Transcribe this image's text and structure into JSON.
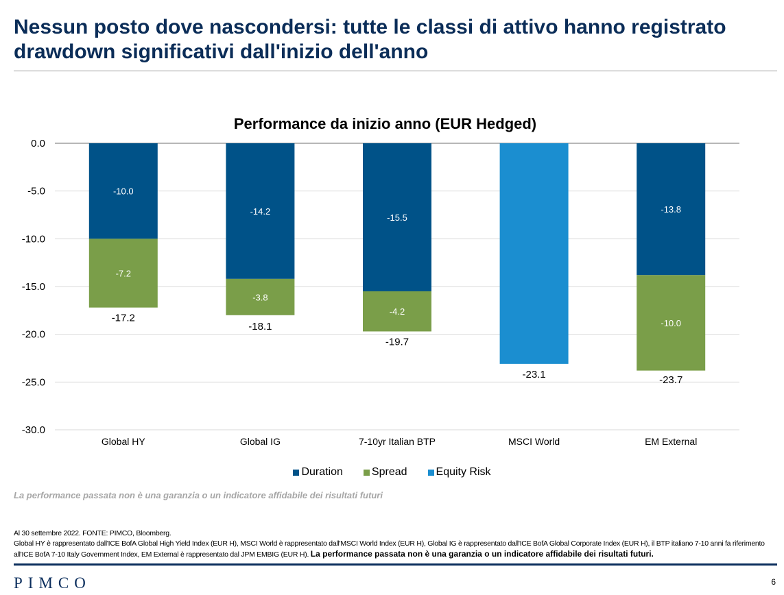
{
  "slide": {
    "title": "Nessun posto dove nascondersi: tutte le classi di attivo hanno registrato drawdown significativi dall'inizio dell'anno",
    "disclaimer": "La performance passata non è una garanzia o un indicatore affidabile dei risultati futuri",
    "notes_line1": "Al 30 settembre 2022. FONTE: PIMCO, Bloomberg.",
    "notes_line2": "Global HY è rappresentato dall'ICE BofA Global High Yield Index (EUR H), MSCI World è rappresentato dall'MSCI World Index (EUR H), Global IG è rappresentato dall'ICE BofA Global Corporate Index (EUR H), il BTP italiano 7-10 anni fa riferimento all'ICE BofA 7-10 Italy Government Index, EM External è rappresentato dal JPM EMBIG (EUR H).",
    "notes_bold": "La performance passata non è una garanzia o un indicatore affidabile dei risultati futuri.",
    "logo": "PIMCO",
    "page_number": "6"
  },
  "chart_data": {
    "type": "bar",
    "stacked": true,
    "title": "Performance da inizio anno (EUR Hedged)",
    "categories": [
      "Global HY",
      "Global IG",
      "7-10yr Italian BTP",
      "MSCI World",
      "EM External"
    ],
    "series": [
      {
        "name": "Duration",
        "color": "#005288",
        "values": [
          -10.0,
          -14.2,
          -15.5,
          null,
          -13.8
        ],
        "labels": [
          "-10.0",
          "-14.2",
          "-15.5",
          "",
          "-13.8"
        ]
      },
      {
        "name": "Spread",
        "color": "#7a9e49",
        "values": [
          -7.2,
          -3.8,
          -4.2,
          null,
          -10.0
        ],
        "labels": [
          "-7.2",
          "-3.8",
          "-4.2",
          "",
          "-10.0"
        ]
      },
      {
        "name": "Equity Risk",
        "color": "#1b8ed0",
        "values": [
          null,
          null,
          null,
          -23.1,
          null
        ],
        "labels": [
          "",
          "",
          "",
          "",
          ""
        ]
      }
    ],
    "totals": [
      -17.2,
      -18.1,
      -19.7,
      -23.1,
      -23.7
    ],
    "total_labels": [
      "-17.2",
      "-18.1",
      "-19.7",
      "-23.1",
      "-23.7"
    ],
    "ylim": [
      -30,
      0
    ],
    "yticks": [
      0,
      -5,
      -10,
      -15,
      -20,
      -25,
      -30
    ],
    "ytick_labels": [
      "0.0",
      "-5.0",
      "-10.0",
      "-15.0",
      "-20.0",
      "-25.0",
      "-30.0"
    ],
    "grid": true,
    "legend_position": "bottom"
  }
}
